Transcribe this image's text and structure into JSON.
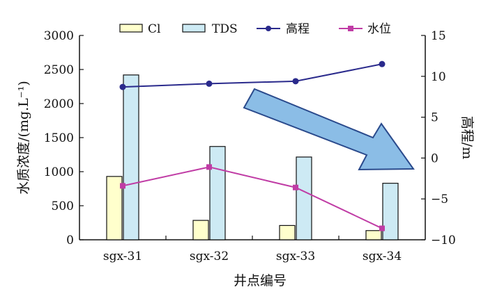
{
  "chart_data": {
    "type": "bar",
    "categories": [
      "sgx-31",
      "sgx-32",
      "sgx-33",
      "sgx-34"
    ],
    "series": [
      {
        "name": "Cl",
        "type": "bar",
        "axis": "left",
        "values": [
          930,
          285,
          210,
          135
        ],
        "color": "#ffffcc"
      },
      {
        "name": "TDS",
        "type": "bar",
        "axis": "left",
        "values": [
          2420,
          1370,
          1215,
          830
        ],
        "color": "#cdeaf4"
      },
      {
        "name": "高程",
        "type": "line",
        "axis": "right",
        "values": [
          8.7,
          9.1,
          9.4,
          11.5
        ],
        "color": "#2a2a8c"
      },
      {
        "name": "水位",
        "type": "line",
        "axis": "right",
        "values": [
          -3.4,
          -1.1,
          -3.6,
          -8.6
        ],
        "color": "#c03ca5"
      }
    ],
    "xlabel": "井点编号",
    "ylabel": "水质浓度/(mg.L⁻¹)",
    "y2label": "高程/m",
    "ylim": [
      0,
      3000
    ],
    "y2lim": [
      -10,
      15
    ],
    "yticks": [
      0,
      500,
      1000,
      1500,
      2000,
      2500,
      3000
    ],
    "y2ticks": [
      -10,
      -5,
      0,
      5,
      10,
      15
    ],
    "y2tick_labels": [
      "−10",
      "−5",
      "0",
      "5",
      "10",
      "15"
    ],
    "legend_position": "top",
    "grid": false,
    "annotation": "large blue arrow pointing down-right (decreasing trend)"
  }
}
